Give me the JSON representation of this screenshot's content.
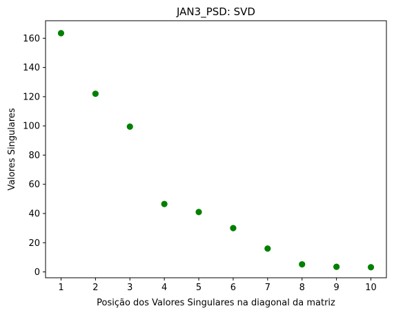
{
  "chart_data": {
    "type": "scatter",
    "title": "JAN3_PSD: SVD",
    "xlabel": "Posição dos Valores Singulares na diagonal da matriz",
    "ylabel": "Valores Singulares",
    "x": [
      1,
      2,
      3,
      4,
      5,
      6,
      7,
      8,
      9,
      10
    ],
    "y": [
      163.5,
      122.0,
      99.5,
      46.5,
      41.0,
      30.0,
      16.0,
      5.2,
      3.5,
      3.2
    ],
    "xlim": [
      0.55,
      10.45
    ],
    "ylim": [
      -4.0,
      172.0
    ],
    "xticks": [
      "1",
      "2",
      "3",
      "4",
      "5",
      "6",
      "7",
      "8",
      "9",
      "10"
    ],
    "yticks": [
      "0",
      "20",
      "40",
      "60",
      "80",
      "100",
      "120",
      "140",
      "160"
    ],
    "marker_color": "#008000",
    "grid": false
  }
}
